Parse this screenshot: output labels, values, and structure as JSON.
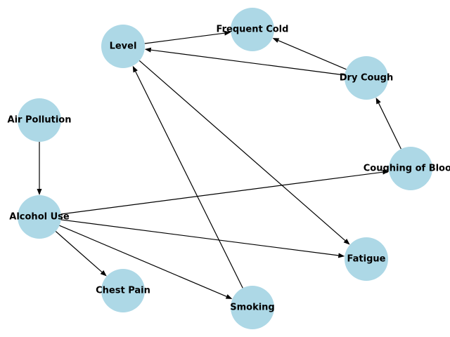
{
  "node_color": "#add8e6",
  "edge_color": "#000000",
  "nodes": [
    {
      "id": "level",
      "label": "Level"
    },
    {
      "id": "frequent_cold",
      "label": "Frequent Cold"
    },
    {
      "id": "dry_cough",
      "label": "Dry Cough"
    },
    {
      "id": "air_pollution",
      "label": "Air Pollution"
    },
    {
      "id": "coughing_of_blood",
      "label": "Coughing of Blood"
    },
    {
      "id": "alcohol_use",
      "label": "Alcohol Use"
    },
    {
      "id": "fatigue",
      "label": "Fatigue"
    },
    {
      "id": "chest_pain",
      "label": "Chest Pain"
    },
    {
      "id": "smoking",
      "label": "Smoking"
    }
  ],
  "edges": [
    {
      "from": "level",
      "to": "frequent_cold"
    },
    {
      "from": "level",
      "to": "fatigue"
    },
    {
      "from": "dry_cough",
      "to": "frequent_cold"
    },
    {
      "from": "dry_cough",
      "to": "level"
    },
    {
      "from": "coughing_of_blood",
      "to": "dry_cough"
    },
    {
      "from": "air_pollution",
      "to": "alcohol_use"
    },
    {
      "from": "alcohol_use",
      "to": "coughing_of_blood"
    },
    {
      "from": "alcohol_use",
      "to": "fatigue"
    },
    {
      "from": "alcohol_use",
      "to": "chest_pain"
    },
    {
      "from": "alcohol_use",
      "to": "smoking"
    },
    {
      "from": "smoking",
      "to": "level"
    }
  ]
}
